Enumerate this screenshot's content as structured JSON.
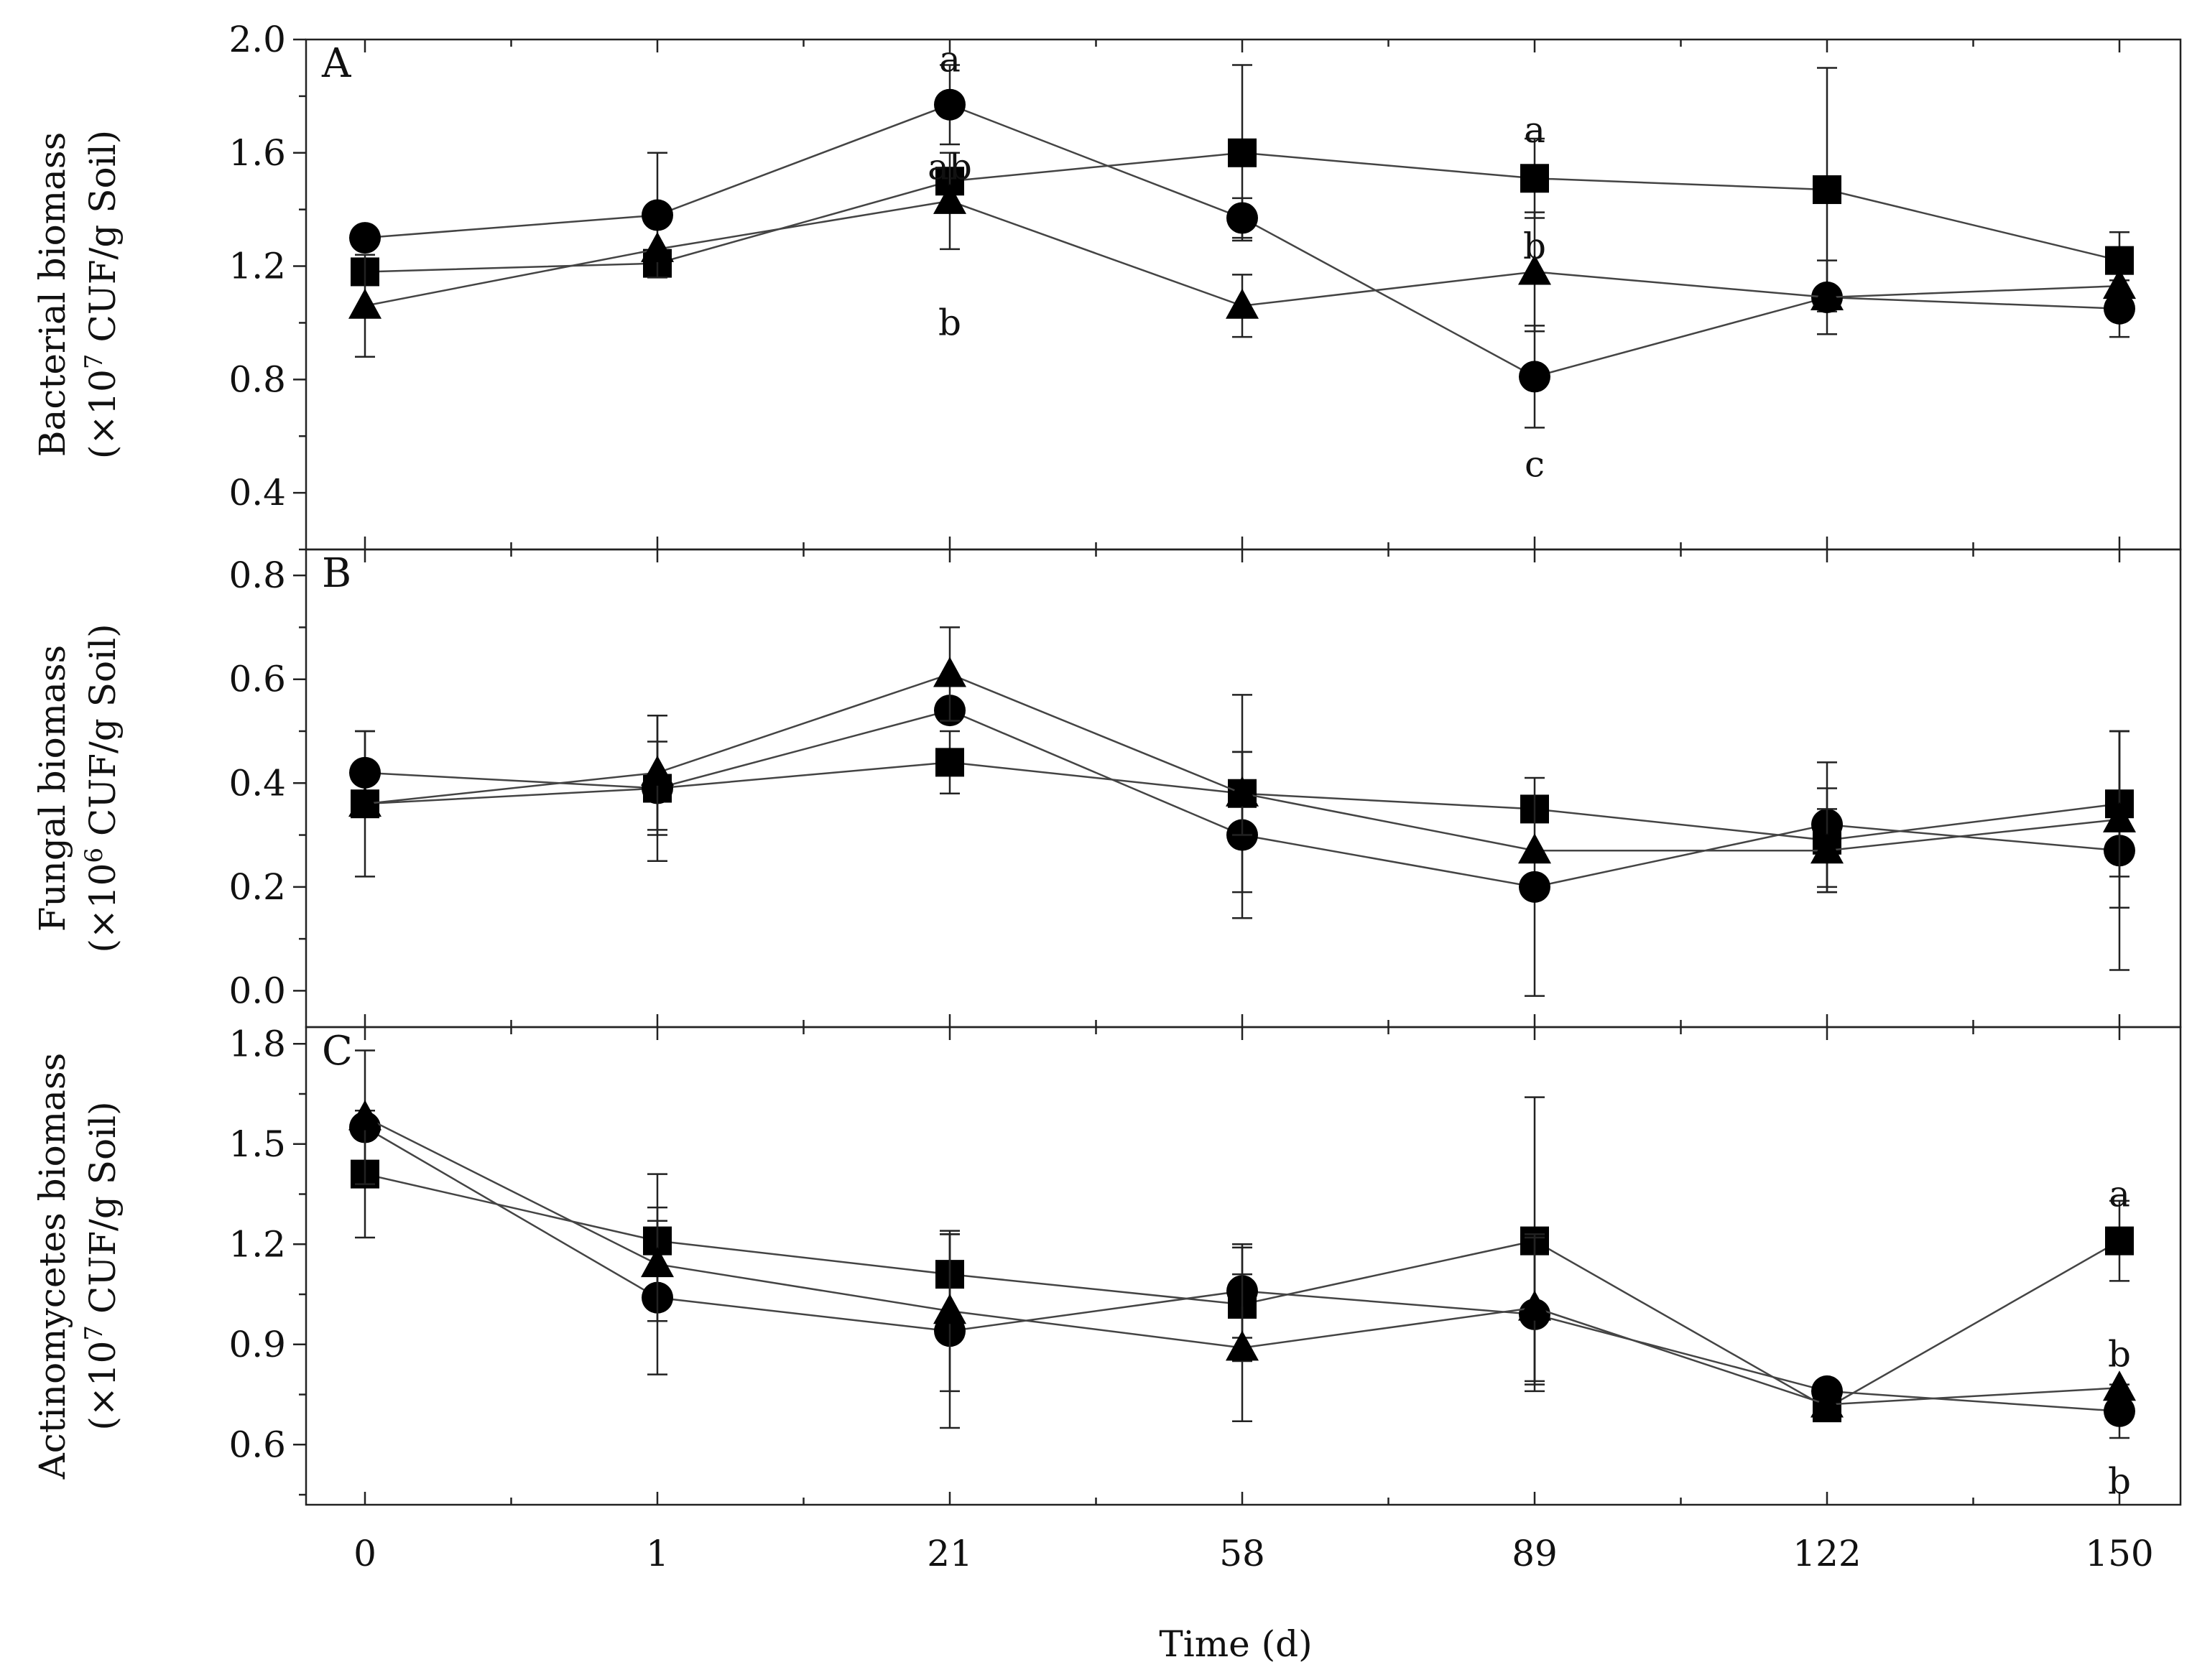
{
  "chart_data": {
    "type": "line",
    "x_title": "Time (d)",
    "x_categories": [
      "0",
      "1",
      "21",
      "58",
      "89",
      "122",
      "150"
    ],
    "series_markers": [
      "square",
      "circle",
      "triangle"
    ],
    "panels": [
      {
        "id": "A",
        "letter": "A",
        "ylabel_line1": "Bacterial biomass",
        "ylabel_line2_pre": "(×10",
        "ylabel_line2_sup": "7",
        "ylabel_line2_post": " CUF/g Soil)",
        "ylim": [
          0.2,
          2.0
        ],
        "yticks": [
          0.4,
          0.8,
          1.2,
          1.6,
          2.0
        ],
        "ytick_labels": [
          "0.4",
          "0.8",
          "1.2",
          "1.6",
          "2.0"
        ],
        "series": [
          {
            "marker": "square",
            "values": [
              1.18,
              1.21,
              1.5,
              1.6,
              1.51,
              1.47,
              1.22
            ],
            "errors": [
              0.0,
              0.0,
              0.0,
              0.31,
              0.14,
              0.43,
              0.1
            ]
          },
          {
            "marker": "circle",
            "values": [
              1.3,
              1.38,
              1.77,
              1.37,
              0.81,
              1.09,
              1.05
            ],
            "errors": [
              0.0,
              0.22,
              0.14,
              0.07,
              0.18,
              0.13,
              0.1
            ]
          },
          {
            "marker": "triangle",
            "values": [
              1.06,
              1.26,
              1.43,
              1.06,
              1.18,
              1.09,
              1.13
            ],
            "errors": [
              0.18,
              0.0,
              0.17,
              0.11,
              0.21,
              0.0,
              0.0
            ]
          }
        ],
        "annotations": [
          {
            "text": "a",
            "x": "21",
            "y": 1.93
          },
          {
            "text": "ab",
            "x": "21",
            "y": 1.55
          },
          {
            "text": "b",
            "x": "21",
            "y": 1.0
          },
          {
            "text": "a",
            "x": "89",
            "y": 1.68
          },
          {
            "text": "b",
            "x": "89",
            "y": 1.27
          },
          {
            "text": "c",
            "x": "89",
            "y": 0.5
          }
        ]
      },
      {
        "id": "B",
        "letter": "B",
        "ylabel_line1": "Fungal biomass",
        "ylabel_line2_pre": "(×10",
        "ylabel_line2_sup": "6",
        "ylabel_line2_post": " CUF/g Soil)",
        "ylim": [
          -0.07,
          0.85
        ],
        "yticks": [
          0.0,
          0.2,
          0.4,
          0.6,
          0.8
        ],
        "ytick_labels": [
          "0.0",
          "0.2",
          "0.4",
          "0.6",
          "0.8"
        ],
        "series": [
          {
            "marker": "square",
            "values": [
              0.36,
              0.39,
              0.44,
              0.38,
              0.35,
              0.29,
              0.36
            ],
            "errors": [
              0.14,
              0.14,
              0.06,
              0.19,
              0.0,
              0.1,
              0.14
            ]
          },
          {
            "marker": "circle",
            "values": [
              0.42,
              0.39,
              0.54,
              0.3,
              0.2,
              0.32,
              0.27
            ],
            "errors": [
              0.08,
              0.09,
              0.0,
              0.16,
              0.21,
              0.12,
              0.23
            ]
          },
          {
            "marker": "triangle",
            "values": [
              0.36,
              0.42,
              0.61,
              0.38,
              0.27,
              0.27,
              0.33
            ],
            "errors": [
              0.0,
              0.11,
              0.09,
              0.08,
              0.0,
              0.08,
              0.17
            ]
          }
        ],
        "annotations": []
      },
      {
        "id": "C",
        "letter": "C",
        "ylabel_line1": "Actinomycetes biomass",
        "ylabel_line2_pre": "(×10",
        "ylabel_line2_sup": "7",
        "ylabel_line2_post": " CUF/g Soil)",
        "ylim": [
          0.42,
          1.85
        ],
        "yticks": [
          0.6,
          0.9,
          1.2,
          1.5,
          1.8
        ],
        "ytick_labels": [
          "0.6",
          "0.9",
          "1.2",
          "1.5",
          "1.8"
        ],
        "series": [
          {
            "marker": "square",
            "values": [
              1.41,
              1.21,
              1.11,
              1.02,
              1.21,
              0.71,
              1.21
            ],
            "errors": [
              0.19,
              0.2,
              0.12,
              0.17,
              0.43,
              0.0,
              0.12
            ]
          },
          {
            "marker": "circle",
            "values": [
              1.55,
              1.04,
              0.94,
              1.06,
              0.99,
              0.76,
              0.7
            ],
            "errors": [
              0.0,
              0.23,
              0.29,
              0.14,
              0.23,
              0.0,
              0.08
            ]
          },
          {
            "marker": "triangle",
            "values": [
              1.58,
              1.14,
              1.0,
              0.89,
              1.01,
              0.72,
              0.77
            ],
            "errors": [
              0.2,
              0.17,
              0.24,
              0.22,
              0.22,
              0.0,
              0.0
            ]
          }
        ],
        "annotations": [
          {
            "text": "a",
            "x": "150",
            "y": 1.35
          },
          {
            "text": "b",
            "x": "150",
            "y": 0.87
          },
          {
            "text": "b",
            "x": "150",
            "y": 0.49
          }
        ]
      }
    ]
  }
}
